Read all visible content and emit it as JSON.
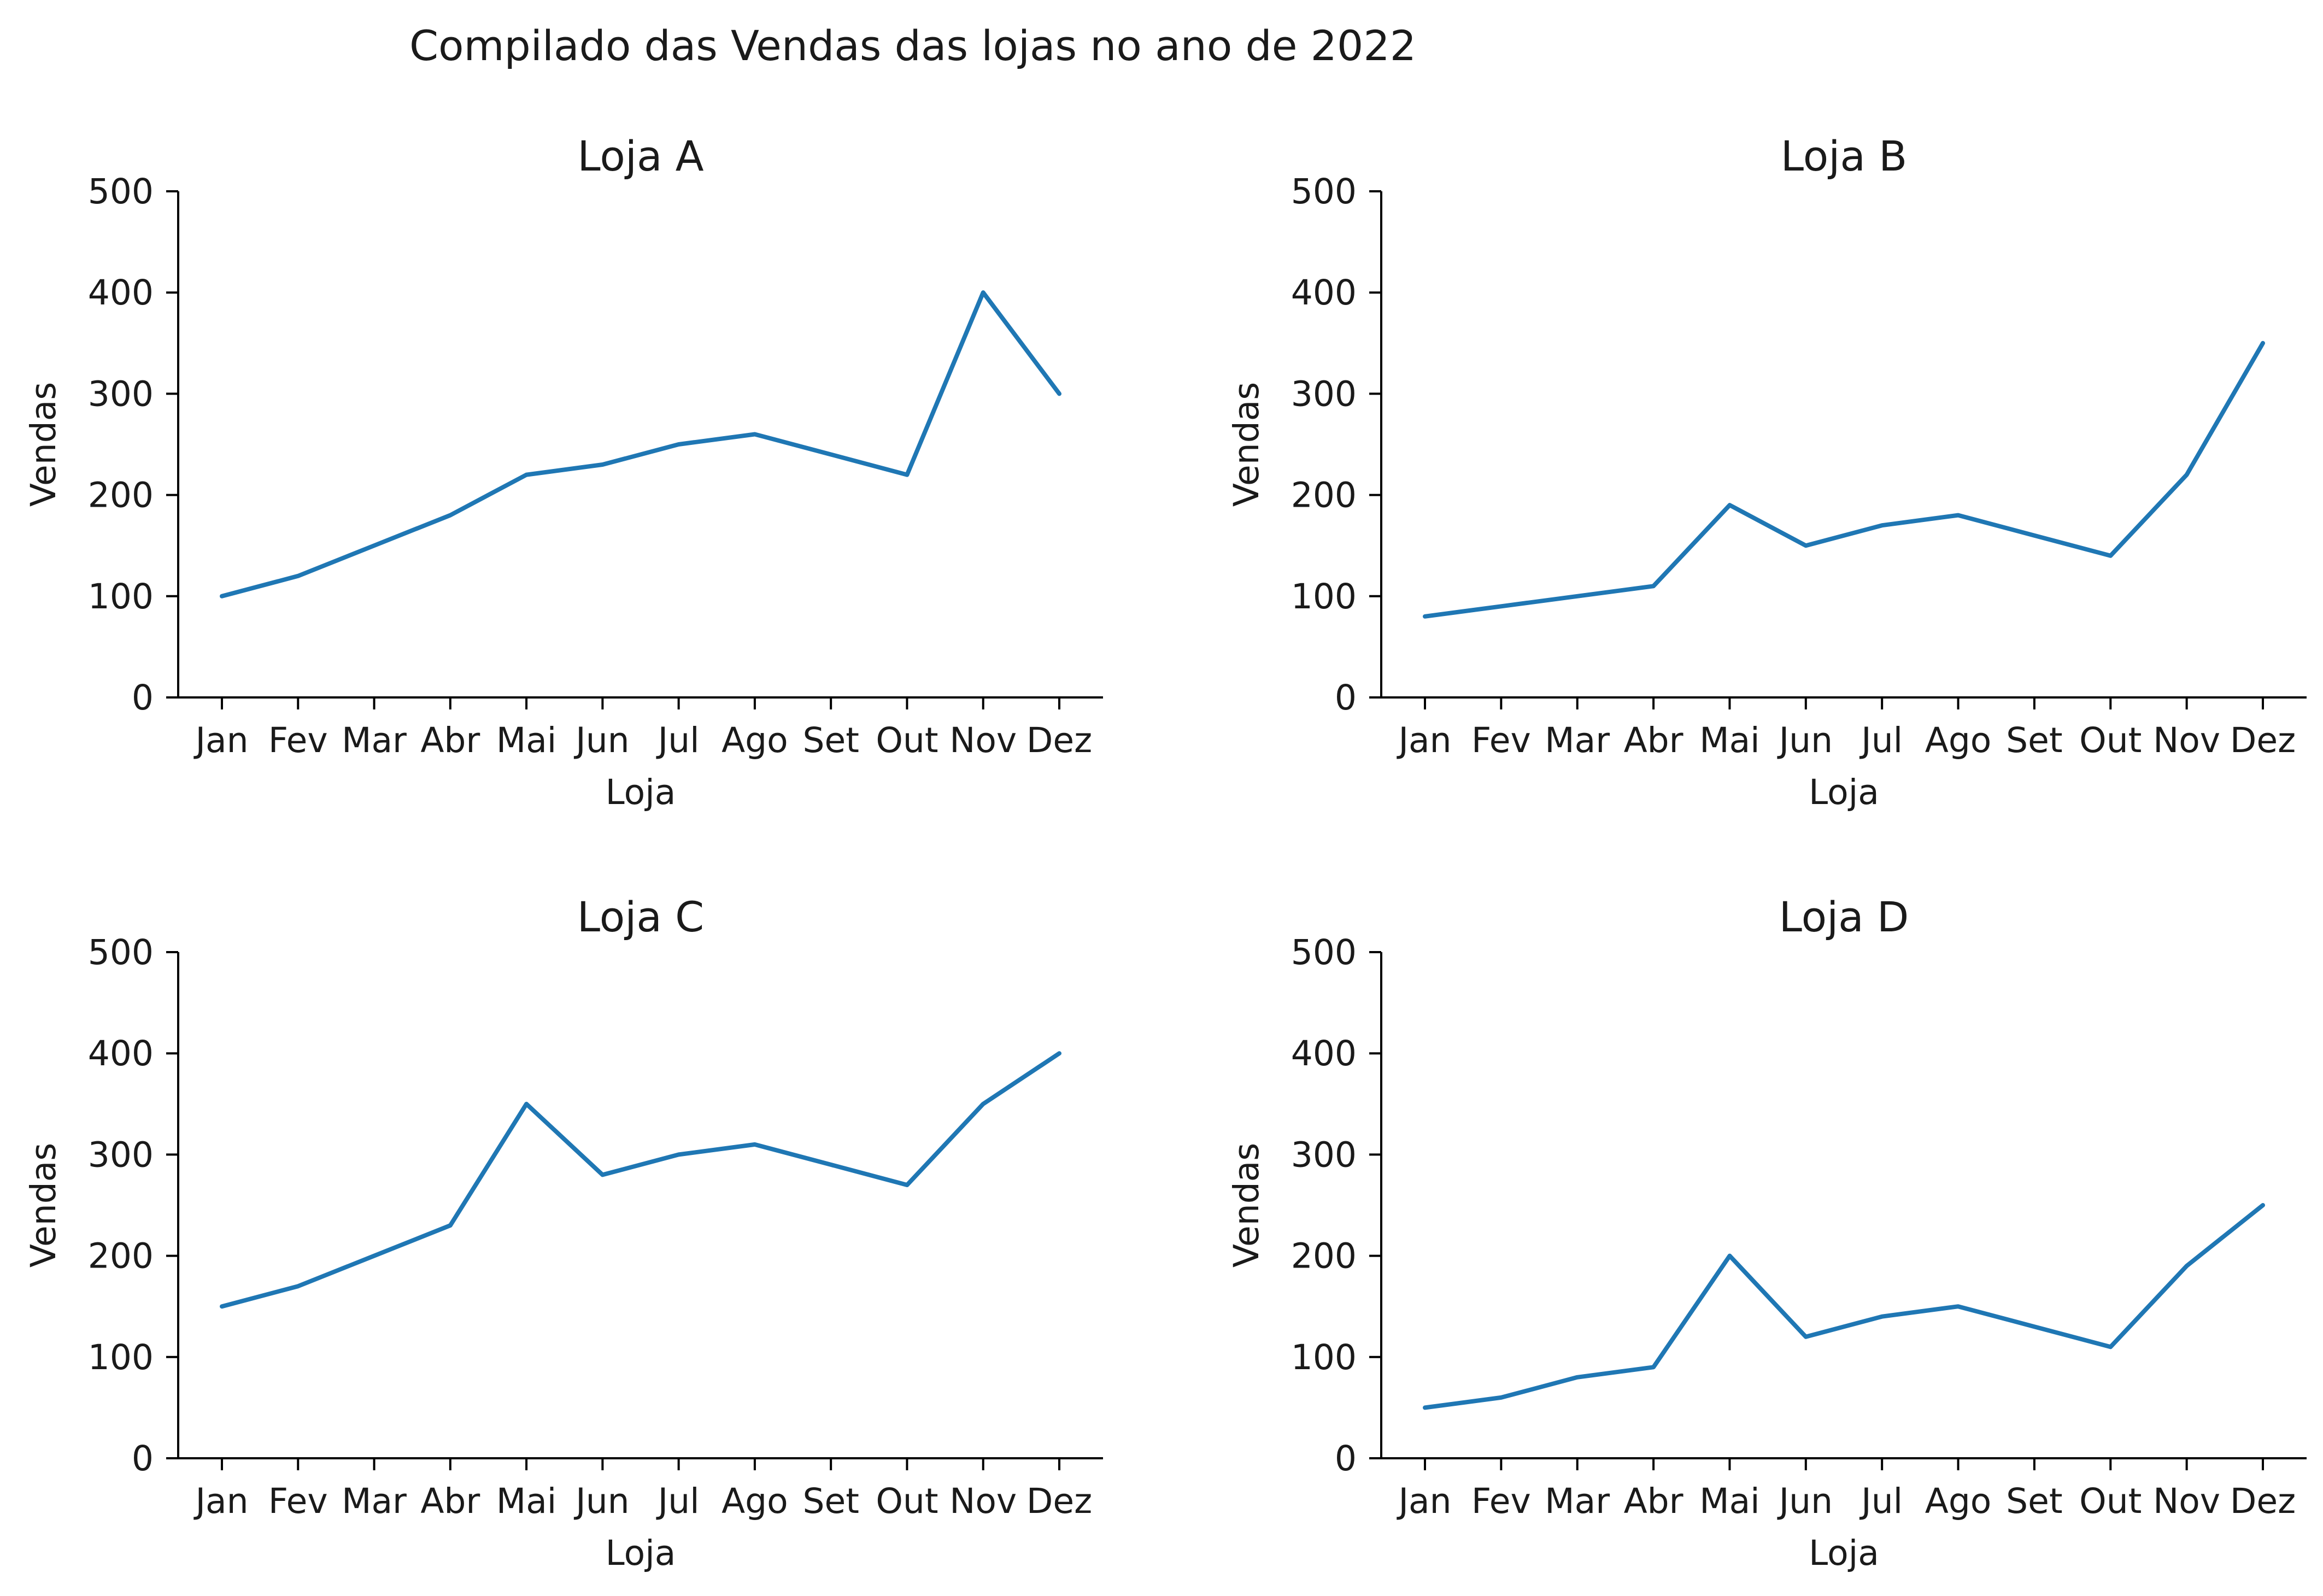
{
  "title": "Compilado das Vendas das lojas no ano de 2022",
  "colors": {
    "line": "#1f77b4",
    "axis": "#000000",
    "text": "#1a1a1a"
  },
  "chart_data": [
    {
      "type": "line",
      "title": "Loja A",
      "xlabel": "Loja",
      "ylabel": "Vendas",
      "categories": [
        "Jan",
        "Fev",
        "Mar",
        "Abr",
        "Mai",
        "Jun",
        "Jul",
        "Ago",
        "Set",
        "Out",
        "Nov",
        "Dez"
      ],
      "values": [
        100,
        120,
        150,
        180,
        220,
        230,
        250,
        260,
        240,
        220,
        400,
        300
      ],
      "ylim": [
        0,
        500
      ],
      "yticks": [
        "0",
        "100",
        "200",
        "300",
        "400",
        "500"
      ],
      "grid": false
    },
    {
      "type": "line",
      "title": "Loja B",
      "xlabel": "Loja",
      "ylabel": "Vendas",
      "categories": [
        "Jan",
        "Fev",
        "Mar",
        "Abr",
        "Mai",
        "Jun",
        "Jul",
        "Ago",
        "Set",
        "Out",
        "Nov",
        "Dez"
      ],
      "values": [
        80,
        90,
        100,
        110,
        190,
        150,
        170,
        180,
        160,
        140,
        220,
        350
      ],
      "ylim": [
        0,
        500
      ],
      "yticks": [
        "0",
        "100",
        "200",
        "300",
        "400",
        "500"
      ],
      "grid": false
    },
    {
      "type": "line",
      "title": "Loja C",
      "xlabel": "Loja",
      "ylabel": "Vendas",
      "categories": [
        "Jan",
        "Fev",
        "Mar",
        "Abr",
        "Mai",
        "Jun",
        "Jul",
        "Ago",
        "Set",
        "Out",
        "Nov",
        "Dez"
      ],
      "values": [
        150,
        170,
        200,
        230,
        350,
        280,
        300,
        310,
        290,
        270,
        350,
        400
      ],
      "ylim": [
        0,
        500
      ],
      "yticks": [
        "0",
        "100",
        "200",
        "300",
        "400",
        "500"
      ],
      "grid": false
    },
    {
      "type": "line",
      "title": "Loja D",
      "xlabel": "Loja",
      "ylabel": "Vendas",
      "categories": [
        "Jan",
        "Fev",
        "Mar",
        "Abr",
        "Mai",
        "Jun",
        "Jul",
        "Ago",
        "Set",
        "Out",
        "Nov",
        "Dez"
      ],
      "values": [
        50,
        60,
        80,
        90,
        200,
        120,
        140,
        150,
        130,
        110,
        190,
        250
      ],
      "ylim": [
        0,
        500
      ],
      "yticks": [
        "0",
        "100",
        "200",
        "300",
        "400",
        "500"
      ],
      "grid": false
    }
  ]
}
